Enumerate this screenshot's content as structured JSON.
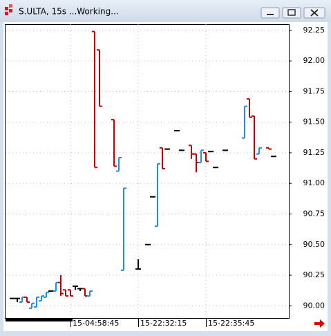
{
  "chart_data": {
    "type": "ohlc",
    "title": "S.ULTA, 15s ...Working...",
    "categories": [
      null,
      null,
      null,
      null,
      null,
      null,
      null,
      null,
      null,
      null,
      null,
      null,
      "15-04:58:45",
      null,
      null,
      null,
      null,
      null,
      null,
      null,
      null,
      null,
      null,
      null,
      null,
      null,
      "15-22:32:15",
      null,
      null,
      null,
      null,
      null,
      null,
      null,
      null,
      null,
      null,
      null,
      null,
      null,
      "15-22:35:45",
      null,
      null,
      null,
      null,
      null,
      null,
      null,
      null,
      null,
      null,
      null,
      null,
      null,
      null
    ],
    "open": [
      90.06,
      90.06,
      90.03,
      90.07,
      89.98,
      89.99,
      90.04,
      90.07,
      90.12,
      90.12,
      90.19,
      90.13,
      90.13,
      90.16,
      90.14,
      90.14,
      90.08,
      92.24,
      92.09,
      null,
      null,
      91.52,
      91.1,
      90.29,
      null,
      null,
      90.3,
      null,
      90.5,
      90.89,
      90.65,
      91.29,
      91.28,
      null,
      91.43,
      91.27,
      null,
      91.31,
      91.24,
      91.17,
      91.25,
      91.26,
      91.13,
      null,
      91.27,
      null,
      null,
      null,
      91.37,
      91.69,
      91.55,
      91.24,
      null,
      91.29,
      91.22
    ],
    "high": [
      90.06,
      90.06,
      90.07,
      90.07,
      90.02,
      90.07,
      90.08,
      90.11,
      90.12,
      90.19,
      90.25,
      90.13,
      90.13,
      90.16,
      90.14,
      90.14,
      90.12,
      92.24,
      92.09,
      null,
      null,
      91.52,
      91.21,
      90.96,
      null,
      null,
      90.38,
      null,
      90.5,
      90.89,
      91.16,
      91.29,
      91.28,
      null,
      91.43,
      91.27,
      null,
      91.31,
      91.24,
      91.27,
      91.25,
      91.26,
      91.13,
      null,
      91.27,
      null,
      null,
      null,
      91.63,
      91.69,
      91.55,
      91.29,
      null,
      91.29,
      91.22
    ],
    "low": [
      90.06,
      90.03,
      90.03,
      90.03,
      89.98,
      89.99,
      90.04,
      90.07,
      90.12,
      90.12,
      90.08,
      90.08,
      90.08,
      90.13,
      90.12,
      90.08,
      90.08,
      91.13,
      91.63,
      null,
      null,
      91.14,
      91.1,
      90.29,
      null,
      null,
      90.3,
      null,
      90.5,
      90.89,
      90.65,
      91.12,
      91.28,
      null,
      91.43,
      91.27,
      null,
      91.2,
      91.09,
      91.17,
      91.18,
      91.26,
      91.13,
      null,
      91.27,
      null,
      null,
      null,
      91.37,
      91.54,
      91.2,
      91.24,
      null,
      91.28,
      91.22
    ],
    "close": [
      90.06,
      90.06,
      90.07,
      90.03,
      90.02,
      90.07,
      90.08,
      90.11,
      90.12,
      90.19,
      90.1,
      90.08,
      90.08,
      90.16,
      90.14,
      90.08,
      90.12,
      91.13,
      91.63,
      null,
      null,
      91.14,
      91.21,
      90.96,
      null,
      null,
      90.3,
      null,
      90.5,
      90.89,
      91.16,
      91.12,
      91.28,
      null,
      91.43,
      91.27,
      null,
      91.24,
      91.17,
      91.27,
      91.18,
      91.26,
      91.13,
      null,
      91.27,
      null,
      null,
      null,
      91.63,
      91.54,
      91.2,
      91.29,
      null,
      91.28,
      91.22
    ],
    "up_color": "#1e8ee0",
    "down_color": "#c00000",
    "flat_color": "#000000",
    "ylim": [
      89.9,
      92.3
    ],
    "yticks": [
      {
        "value": 90,
        "label": "90.00"
      },
      90.25,
      {
        "value": 90.5,
        "label": "90.50"
      },
      90.75,
      {
        "value": 91,
        "label": "91.00"
      },
      91.25,
      {
        "value": 91.5,
        "label": "91.50"
      },
      91.75,
      {
        "value": 92,
        "label": "92.00"
      },
      92.25
    ],
    "grid": true
  }
}
